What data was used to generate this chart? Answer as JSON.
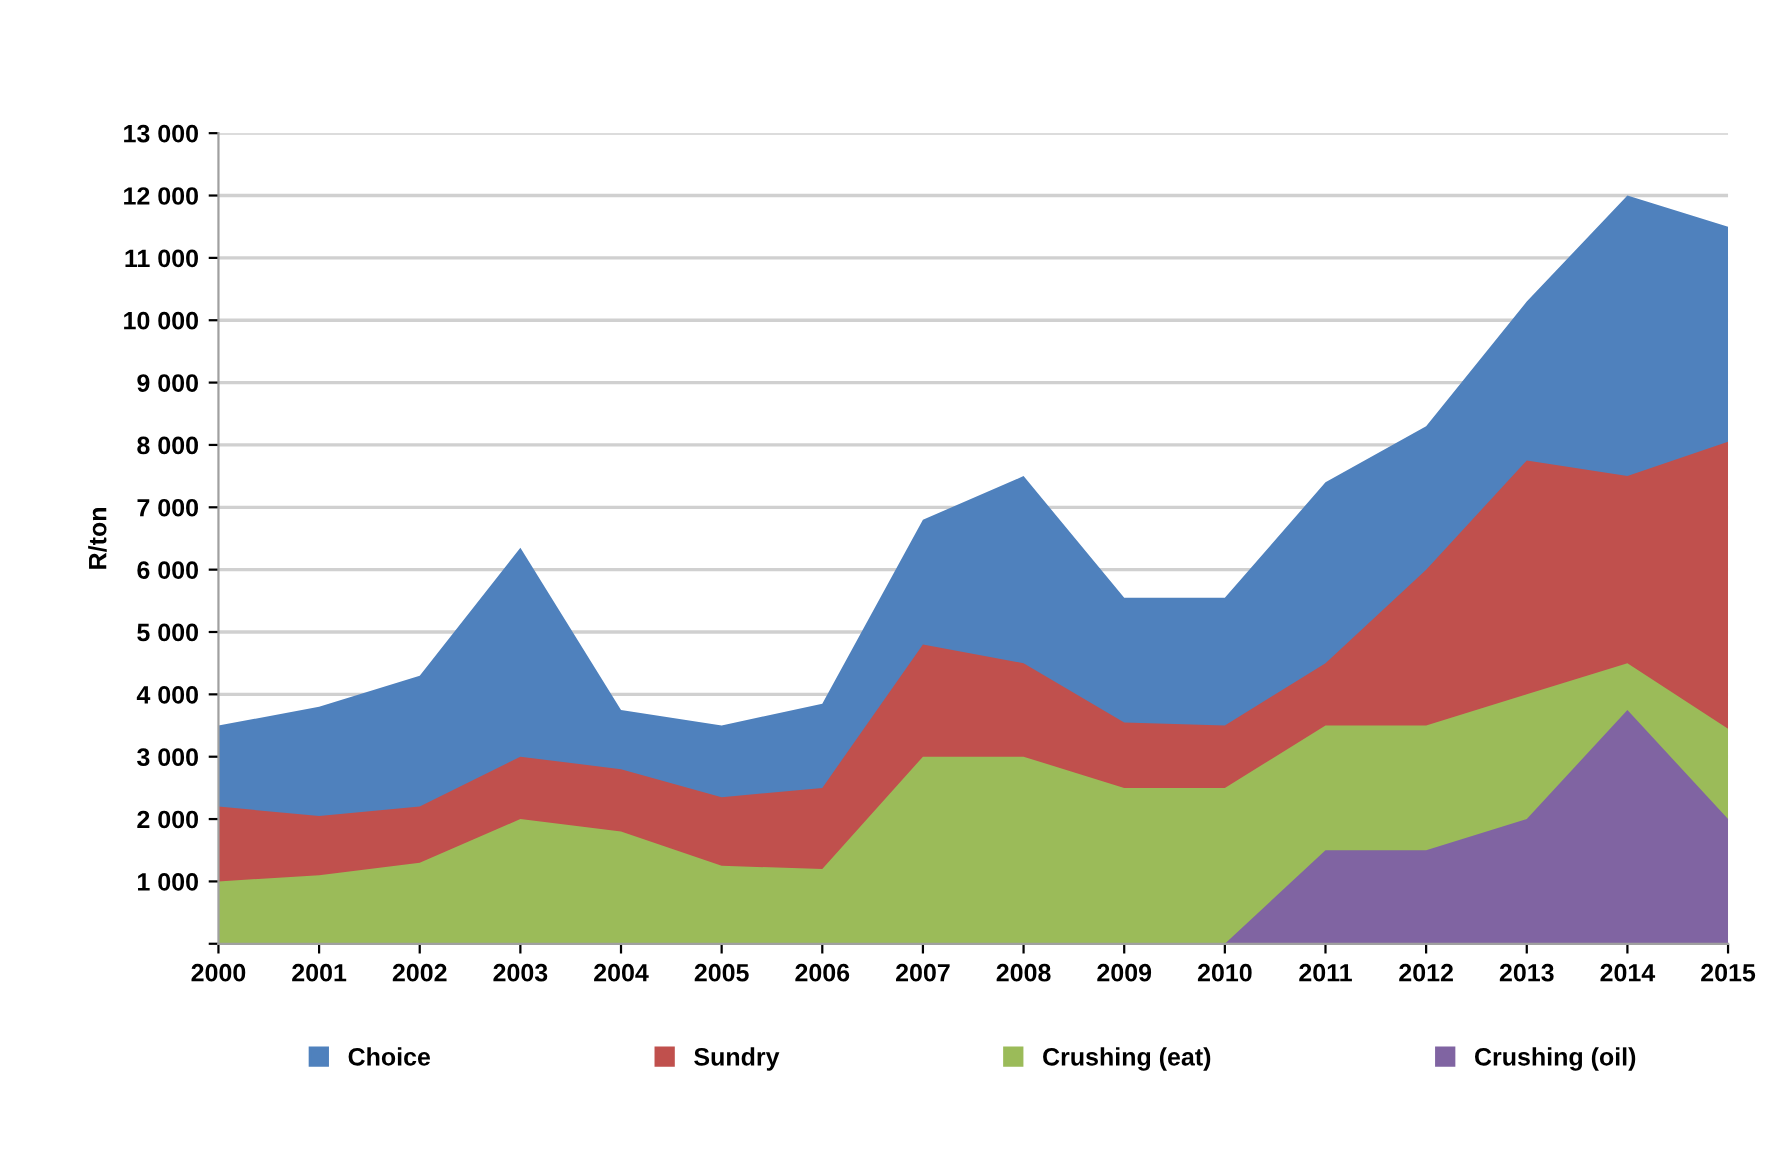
{
  "chart_data": {
    "type": "area",
    "ylabel": "R/ton",
    "categories": [
      "2000",
      "2001",
      "2002",
      "2003",
      "2004",
      "2005",
      "2006",
      "2007",
      "2008",
      "2009",
      "2010",
      "2011",
      "2012",
      "2013",
      "2014",
      "2015"
    ],
    "series": [
      {
        "name": "Choice",
        "color": "#4f81bd",
        "values": [
          3500,
          3800,
          4300,
          6350,
          3750,
          3500,
          3850,
          6800,
          7500,
          5550,
          5550,
          7400,
          8300,
          10300,
          12000,
          11500
        ]
      },
      {
        "name": "Sundry",
        "color": "#c0504d",
        "values": [
          2200,
          2050,
          2200,
          3000,
          2800,
          2350,
          2500,
          4800,
          4500,
          3550,
          3500,
          4500,
          6000,
          7750,
          7500,
          8050
        ]
      },
      {
        "name": "Crushing (eat)",
        "color": "#9bbb59",
        "values": [
          1000,
          1100,
          1300,
          2000,
          1800,
          1250,
          1200,
          3000,
          3000,
          2500,
          2500,
          3500,
          3500,
          4000,
          4500,
          3450
        ]
      },
      {
        "name": "Crushing (oil)",
        "color": "#8064a2",
        "values": [
          null,
          null,
          null,
          null,
          null,
          null,
          null,
          null,
          null,
          null,
          0,
          1500,
          1500,
          2000,
          3750,
          2000
        ]
      }
    ],
    "ylim": [
      0,
      13000
    ],
    "yticks": [
      {
        "value": 0,
        "label": null
      },
      {
        "value": 1000,
        "label": "1 000"
      },
      {
        "value": 2000,
        "label": "2 000"
      },
      {
        "value": 3000,
        "label": "3 000"
      },
      {
        "value": 4000,
        "label": "4 000"
      },
      {
        "value": 5000,
        "label": "5 000"
      },
      {
        "value": 6000,
        "label": "6 000"
      },
      {
        "value": 7000,
        "label": "7 000"
      },
      {
        "value": 8000,
        "label": "8 000"
      },
      {
        "value": 9000,
        "label": "9 000"
      },
      {
        "value": 10000,
        "label": "10 000"
      },
      {
        "value": 11000,
        "label": "11 000"
      },
      {
        "value": 12000,
        "label": "12 000"
      },
      {
        "value": 13000,
        "label": "13 000"
      }
    ],
    "grid": "y",
    "legend": "bottom"
  }
}
